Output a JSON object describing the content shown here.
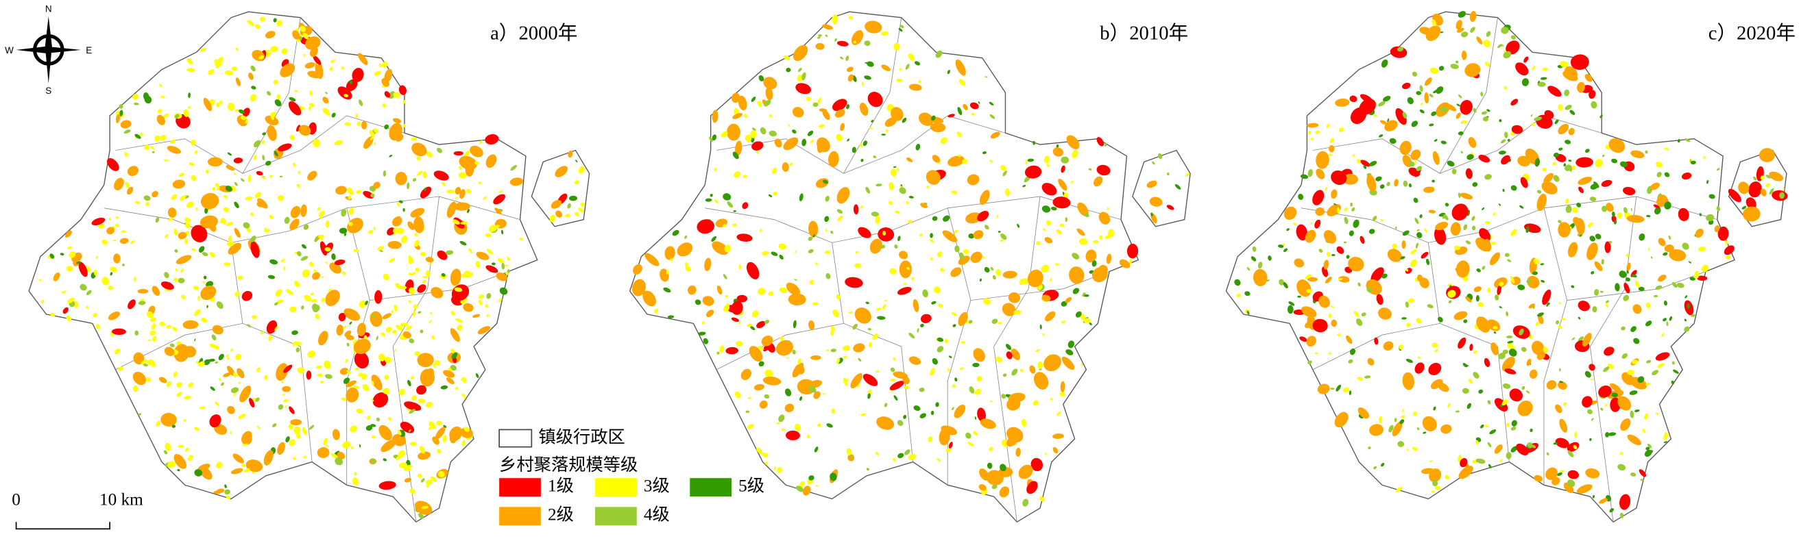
{
  "compass": {
    "north": "N",
    "south": "S",
    "west": "W",
    "east": "E"
  },
  "panels": [
    {
      "label": "a）2000年"
    },
    {
      "label": "b）2010年"
    },
    {
      "label": "c）2020年"
    }
  ],
  "legend": {
    "boundary": "镇级行政区",
    "title": "乡村聚落规模等级",
    "levels": [
      {
        "name": "1级",
        "color": "#ff0000"
      },
      {
        "name": "2级",
        "color": "#ffa500"
      },
      {
        "name": "3级",
        "color": "#ffff00"
      },
      {
        "name": "4级",
        "color": "#99cc33"
      },
      {
        "name": "5级",
        "color": "#339900"
      }
    ]
  },
  "scale_bar": {
    "start": "0",
    "end": "10 km"
  }
}
